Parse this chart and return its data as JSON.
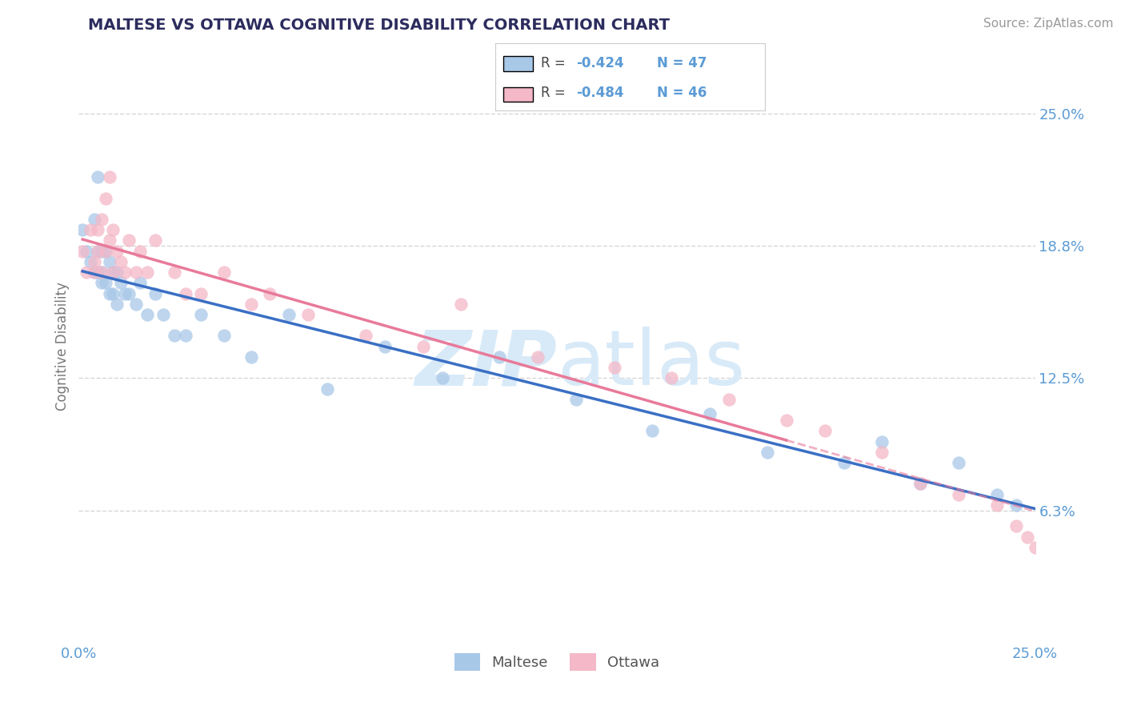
{
  "title": "MALTESE VS OTTAWA COGNITIVE DISABILITY CORRELATION CHART",
  "source": "Source: ZipAtlas.com",
  "ylabel": "Cognitive Disability",
  "legend_label_blue": "Maltese",
  "legend_label_pink": "Ottawa",
  "R_blue": -0.424,
  "N_blue": 47,
  "R_pink": -0.484,
  "N_pink": 46,
  "xlim": [
    0,
    0.25
  ],
  "ylim": [
    0,
    0.28
  ],
  "yticks": [
    0.0625,
    0.125,
    0.1875,
    0.25
  ],
  "ytick_labels": [
    "6.3%",
    "12.5%",
    "18.8%",
    "25.0%"
  ],
  "xticks": [
    0.0,
    0.25
  ],
  "xtick_labels": [
    "0.0%",
    "25.0%"
  ],
  "color_blue": "#a8c8e8",
  "color_pink": "#f4b8c8",
  "color_blue_line": "#3a6fc4",
  "color_pink_line": "#e87a9a",
  "color_title": "#2c2c5e",
  "color_axis_labels": "#5b9bd5",
  "watermark_color": "#d8eaf8",
  "background_color": "#ffffff",
  "blue_x": [
    0.001,
    0.002,
    0.003,
    0.004,
    0.004,
    0.005,
    0.005,
    0.005,
    0.006,
    0.006,
    0.006,
    0.007,
    0.007,
    0.008,
    0.008,
    0.009,
    0.009,
    0.01,
    0.01,
    0.011,
    0.012,
    0.013,
    0.015,
    0.016,
    0.018,
    0.02,
    0.022,
    0.025,
    0.028,
    0.032,
    0.038,
    0.045,
    0.055,
    0.065,
    0.08,
    0.095,
    0.11,
    0.13,
    0.15,
    0.165,
    0.18,
    0.2,
    0.21,
    0.22,
    0.23,
    0.24,
    0.245
  ],
  "blue_y": [
    0.195,
    0.185,
    0.18,
    0.2,
    0.175,
    0.22,
    0.185,
    0.175,
    0.185,
    0.175,
    0.17,
    0.185,
    0.17,
    0.18,
    0.165,
    0.175,
    0.165,
    0.175,
    0.16,
    0.17,
    0.165,
    0.165,
    0.16,
    0.17,
    0.155,
    0.165,
    0.155,
    0.145,
    0.145,
    0.155,
    0.145,
    0.135,
    0.155,
    0.12,
    0.14,
    0.125,
    0.135,
    0.115,
    0.1,
    0.108,
    0.09,
    0.085,
    0.095,
    0.075,
    0.085,
    0.07,
    0.065
  ],
  "pink_x": [
    0.001,
    0.002,
    0.003,
    0.004,
    0.004,
    0.005,
    0.005,
    0.006,
    0.006,
    0.007,
    0.007,
    0.008,
    0.008,
    0.009,
    0.009,
    0.01,
    0.011,
    0.012,
    0.013,
    0.015,
    0.016,
    0.018,
    0.02,
    0.025,
    0.028,
    0.032,
    0.038,
    0.045,
    0.05,
    0.06,
    0.075,
    0.09,
    0.1,
    0.12,
    0.14,
    0.155,
    0.17,
    0.185,
    0.195,
    0.21,
    0.22,
    0.23,
    0.24,
    0.245,
    0.248,
    0.25
  ],
  "pink_y": [
    0.185,
    0.175,
    0.195,
    0.18,
    0.175,
    0.195,
    0.185,
    0.2,
    0.175,
    0.21,
    0.185,
    0.22,
    0.19,
    0.195,
    0.175,
    0.185,
    0.18,
    0.175,
    0.19,
    0.175,
    0.185,
    0.175,
    0.19,
    0.175,
    0.165,
    0.165,
    0.175,
    0.16,
    0.165,
    0.155,
    0.145,
    0.14,
    0.16,
    0.135,
    0.13,
    0.125,
    0.115,
    0.105,
    0.1,
    0.09,
    0.075,
    0.07,
    0.065,
    0.055,
    0.05,
    0.045
  ],
  "pink_line_end_x": 0.185,
  "blue_line_start_x": 0.001,
  "blue_line_end_x": 0.25
}
